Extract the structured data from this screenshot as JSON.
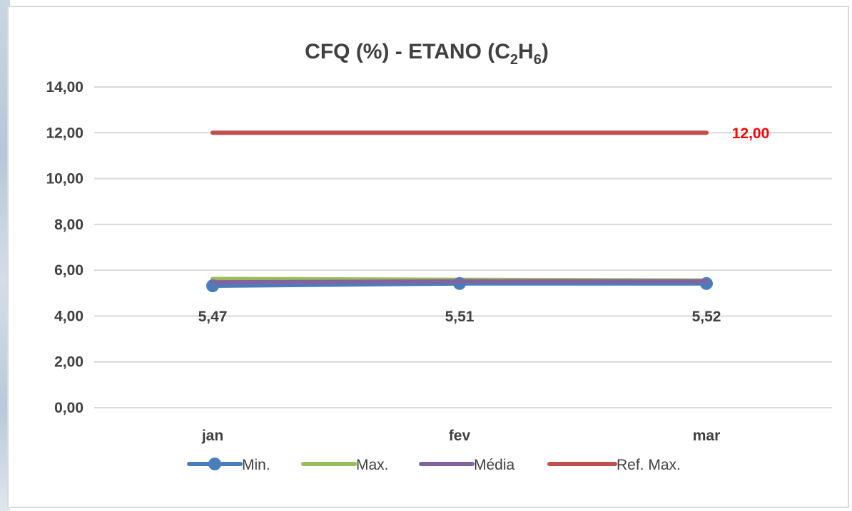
{
  "chart_data": {
    "type": "line",
    "title": {
      "main": "CFQ (%) - ETANO (C",
      "sub1": "2",
      "mid": "H",
      "sub2": "6",
      "end": ")"
    },
    "categories": [
      "jan",
      "fev",
      "mar"
    ],
    "yticks": [
      "0,00",
      "2,00",
      "4,00",
      "6,00",
      "8,00",
      "10,00",
      "12,00",
      "14,00"
    ],
    "ylim": [
      0,
      14
    ],
    "grid": true,
    "legend_position": "bottom",
    "series": [
      {
        "name": "Min.",
        "values": [
          5.32,
          5.42,
          5.42
        ],
        "color": "#4a7ebb",
        "marker": "circle"
      },
      {
        "name": "Max.",
        "values": [
          5.62,
          5.58,
          5.55
        ],
        "color": "#9bbb59",
        "marker": "none"
      },
      {
        "name": "Média",
        "values": [
          5.47,
          5.51,
          5.52
        ],
        "color": "#8064a2",
        "marker": "none"
      },
      {
        "name": "Ref. Max.",
        "values": [
          12.0,
          12.0,
          12.0
        ],
        "color": "#c0504d",
        "marker": "none"
      }
    ],
    "data_labels": [
      "5,47",
      "5,51",
      "5,52"
    ],
    "ref_label": "12,00"
  }
}
